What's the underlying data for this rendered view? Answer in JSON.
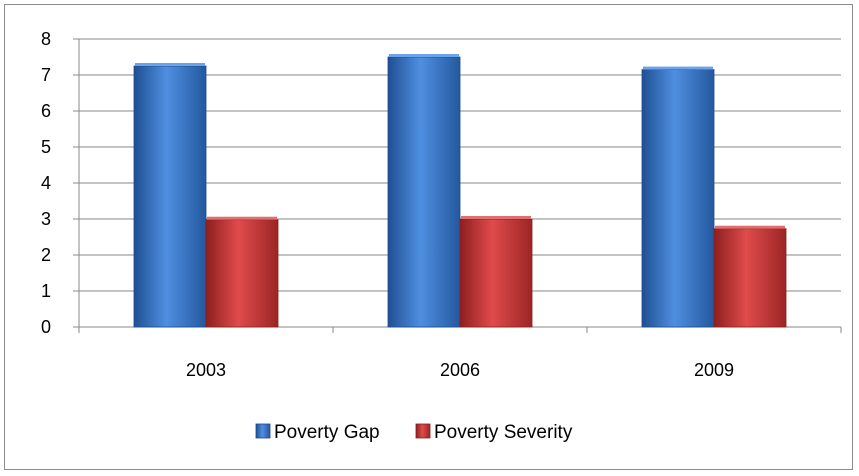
{
  "chart_data": {
    "type": "bar",
    "title": "",
    "xlabel": "",
    "ylabel": "",
    "categories": [
      "2003",
      "2006",
      "2009"
    ],
    "series": [
      {
        "name": "Poverty Gap",
        "values": [
          7.25,
          7.5,
          7.15
        ],
        "color": "#3a78c8"
      },
      {
        "name": "Poverty Severity",
        "values": [
          2.98,
          3.0,
          2.73
        ],
        "color": "#c73a3a"
      }
    ],
    "ylim": [
      0,
      8
    ],
    "yticks": [
      "0",
      "1",
      "2",
      "3",
      "4",
      "5",
      "6",
      "7",
      "8"
    ],
    "grid": true,
    "legend_position": "bottom"
  }
}
